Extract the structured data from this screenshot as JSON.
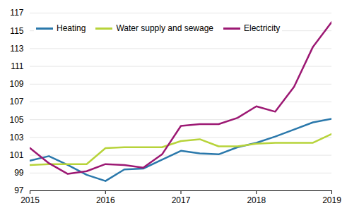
{
  "chart_data": {
    "type": "line",
    "x": [
      2015,
      2015.25,
      2015.5,
      2015.75,
      2016,
      2016.25,
      2016.5,
      2016.75,
      2017,
      2017.25,
      2017.5,
      2017.75,
      2018,
      2018.25,
      2018.5,
      2018.75,
      2019
    ],
    "series": [
      {
        "name": "Heating",
        "color": "#2a78ab",
        "values": [
          100.4,
          100.9,
          99.9,
          98.8,
          98.1,
          99.4,
          99.5,
          100.5,
          101.5,
          101.2,
          101.1,
          101.9,
          102.4,
          103.1,
          103.9,
          104.7,
          105.1
        ]
      },
      {
        "name": "Water supply and sewage",
        "color": "#b7d33a",
        "values": [
          99.9,
          100.0,
          100.0,
          100.0,
          101.8,
          101.9,
          101.9,
          101.9,
          102.6,
          102.8,
          102.0,
          102.0,
          102.3,
          102.4,
          102.4,
          102.4,
          103.4
        ]
      },
      {
        "name": "Electricity",
        "color": "#9c1873",
        "values": [
          101.8,
          100.1,
          98.9,
          99.2,
          100.0,
          99.9,
          99.6,
          101.1,
          104.3,
          104.5,
          104.5,
          105.2,
          106.5,
          105.9,
          108.7,
          113.2,
          116.0
        ]
      }
    ],
    "xlim": [
      2015,
      2019
    ],
    "xticks": [
      2015,
      2016,
      2017,
      2018,
      2019
    ],
    "ylim": [
      97,
      117
    ],
    "yticks": [
      97,
      99,
      101,
      103,
      105,
      107,
      109,
      111,
      113,
      115,
      117
    ],
    "grid": true,
    "legend": "top-left"
  }
}
